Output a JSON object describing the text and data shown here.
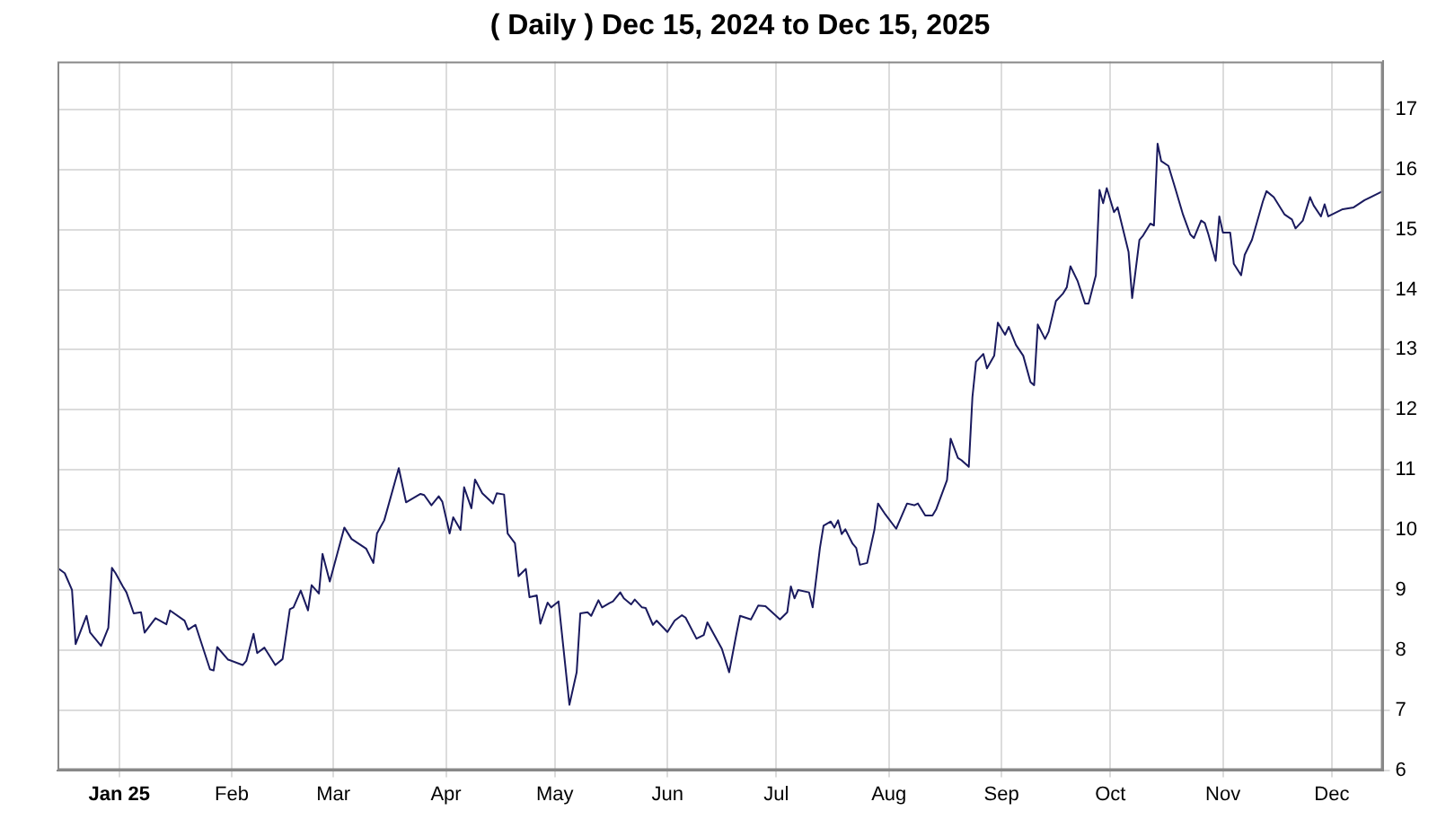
{
  "chart_data": {
    "type": "line",
    "title": "( Daily ) Dec 15, 2024 to Dec 15, 2025",
    "xlim": [
      "2024-12-15",
      "2025-12-15"
    ],
    "xticks": [
      {
        "value": "2025-01-01",
        "label": "Jan 25"
      },
      {
        "value": "2025-02-01",
        "label": "Feb"
      },
      {
        "value": "2025-03-01",
        "label": "Mar"
      },
      {
        "value": "2025-04-01",
        "label": "Apr"
      },
      {
        "value": "2025-05-01",
        "label": "May"
      },
      {
        "value": "2025-06-01",
        "label": "Jun"
      },
      {
        "value": "2025-07-01",
        "label": "Jul"
      },
      {
        "value": "2025-08-01",
        "label": "Aug"
      },
      {
        "value": "2025-09-01",
        "label": "Sep"
      },
      {
        "value": "2025-10-01",
        "label": "Oct"
      },
      {
        "value": "2025-11-01",
        "label": "Nov"
      },
      {
        "value": "2025-12-01",
        "label": "Dec"
      }
    ],
    "ylim": [
      6,
      17.8
    ],
    "yticks": [
      6,
      7,
      8,
      9,
      10,
      11,
      12,
      13,
      14,
      15,
      16,
      17
    ],
    "grid": true,
    "legend": false,
    "marker": "none",
    "line_style": "solid",
    "x": [
      "2024-12-15",
      "2024-12-17",
      "2024-12-19",
      "2024-12-20",
      "2024-12-23",
      "2024-12-24",
      "2024-12-27",
      "2024-12-29",
      "2024-12-30",
      "2024-12-31",
      "2025-01-02",
      "2025-01-03",
      "2025-01-05",
      "2025-01-07",
      "2025-01-08",
      "2025-01-11",
      "2025-01-14",
      "2025-01-15",
      "2025-01-19",
      "2025-01-20",
      "2025-01-22",
      "2025-01-26",
      "2025-01-27",
      "2025-01-28",
      "2025-01-31",
      "2025-02-04",
      "2025-02-05",
      "2025-02-07",
      "2025-02-08",
      "2025-02-10",
      "2025-02-13",
      "2025-02-15",
      "2025-02-17",
      "2025-02-18",
      "2025-02-20",
      "2025-02-22",
      "2025-02-23",
      "2025-02-25",
      "2025-02-26",
      "2025-02-28",
      "2025-03-04",
      "2025-03-06",
      "2025-03-10",
      "2025-03-12",
      "2025-03-13",
      "2025-03-15",
      "2025-03-19",
      "2025-03-21",
      "2025-03-25",
      "2025-03-26",
      "2025-03-28",
      "2025-03-30",
      "2025-03-31",
      "2025-04-02",
      "2025-04-03",
      "2025-04-05",
      "2025-04-06",
      "2025-04-08",
      "2025-04-09",
      "2025-04-11",
      "2025-04-14",
      "2025-04-15",
      "2025-04-17",
      "2025-04-18",
      "2025-04-20",
      "2025-04-21",
      "2025-04-23",
      "2025-04-24",
      "2025-04-26",
      "2025-04-27",
      "2025-04-29",
      "2025-04-30",
      "2025-05-02",
      "2025-05-05",
      "2025-05-07",
      "2025-05-08",
      "2025-05-10",
      "2025-05-11",
      "2025-05-13",
      "2025-05-14",
      "2025-05-16",
      "2025-05-17",
      "2025-05-19",
      "2025-05-20",
      "2025-05-22",
      "2025-05-23",
      "2025-05-25",
      "2025-05-26",
      "2025-05-28",
      "2025-05-29",
      "2025-06-01",
      "2025-06-03",
      "2025-06-05",
      "2025-06-06",
      "2025-06-09",
      "2025-06-11",
      "2025-06-12",
      "2025-06-14",
      "2025-06-16",
      "2025-06-18",
      "2025-06-20",
      "2025-06-21",
      "2025-06-24",
      "2025-06-26",
      "2025-06-28",
      "2025-07-02",
      "2025-07-04",
      "2025-07-05",
      "2025-07-06",
      "2025-07-07",
      "2025-07-10",
      "2025-07-11",
      "2025-07-13",
      "2025-07-14",
      "2025-07-16",
      "2025-07-17",
      "2025-07-18",
      "2025-07-19",
      "2025-07-20",
      "2025-07-22",
      "2025-07-23",
      "2025-07-24",
      "2025-07-26",
      "2025-07-28",
      "2025-07-29",
      "2025-07-31",
      "2025-08-03",
      "2025-08-04",
      "2025-08-06",
      "2025-08-08",
      "2025-08-09",
      "2025-08-11",
      "2025-08-13",
      "2025-08-14",
      "2025-08-17",
      "2025-08-18",
      "2025-08-20",
      "2025-08-21",
      "2025-08-23",
      "2025-08-24",
      "2025-08-25",
      "2025-08-27",
      "2025-08-28",
      "2025-08-30",
      "2025-08-31",
      "2025-09-02",
      "2025-09-03",
      "2025-09-05",
      "2025-09-07",
      "2025-09-09",
      "2025-09-10",
      "2025-09-11",
      "2025-09-13",
      "2025-09-14",
      "2025-09-16",
      "2025-09-18",
      "2025-09-19",
      "2025-09-20",
      "2025-09-22",
      "2025-09-24",
      "2025-09-25",
      "2025-09-27",
      "2025-09-28",
      "2025-09-29",
      "2025-09-30",
      "2025-10-02",
      "2025-10-03",
      "2025-10-06",
      "2025-10-07",
      "2025-10-09",
      "2025-10-10",
      "2025-10-12",
      "2025-10-13",
      "2025-10-14",
      "2025-10-15",
      "2025-10-17",
      "2025-10-19",
      "2025-10-21",
      "2025-10-23",
      "2025-10-24",
      "2025-10-26",
      "2025-10-27",
      "2025-10-28",
      "2025-10-30",
      "2025-10-31",
      "2025-11-01",
      "2025-11-03",
      "2025-11-04",
      "2025-11-06",
      "2025-11-07",
      "2025-11-09",
      "2025-11-12",
      "2025-11-13",
      "2025-11-15",
      "2025-11-18",
      "2025-11-20",
      "2025-11-21",
      "2025-11-23",
      "2025-11-25",
      "2025-11-26",
      "2025-11-28",
      "2025-11-29",
      "2025-11-30",
      "2025-12-04",
      "2025-12-07",
      "2025-12-10",
      "2025-12-15"
    ],
    "series": [
      {
        "color": "#1a1a5e",
        "values": [
          9.37,
          9.28,
          9.0,
          8.1,
          8.57,
          8.29,
          8.07,
          8.37,
          9.37,
          9.28,
          9.06,
          8.96,
          8.61,
          8.63,
          8.29,
          8.53,
          8.43,
          8.66,
          8.49,
          8.34,
          8.42,
          7.68,
          7.66,
          8.05,
          7.84,
          7.75,
          7.82,
          8.27,
          7.95,
          8.04,
          7.75,
          7.85,
          8.68,
          8.71,
          8.99,
          8.66,
          9.08,
          8.94,
          9.6,
          9.14,
          10.04,
          9.85,
          9.69,
          9.45,
          9.94,
          10.16,
          11.03,
          10.46,
          10.6,
          10.58,
          10.41,
          10.56,
          10.47,
          9.94,
          10.21,
          10.0,
          10.71,
          10.36,
          10.84,
          10.61,
          10.44,
          10.61,
          10.59,
          9.94,
          9.78,
          9.23,
          9.35,
          8.88,
          8.91,
          8.44,
          8.79,
          8.71,
          8.81,
          7.09,
          7.63,
          8.61,
          8.63,
          8.57,
          8.83,
          8.71,
          8.78,
          8.81,
          8.96,
          8.86,
          8.76,
          8.84,
          8.71,
          8.7,
          8.42,
          8.49,
          8.3,
          8.49,
          8.58,
          8.54,
          8.19,
          8.25,
          8.46,
          8.24,
          8.02,
          7.63,
          8.27,
          8.57,
          8.51,
          8.74,
          8.73,
          8.51,
          8.63,
          9.06,
          8.86,
          9.0,
          8.96,
          8.71,
          9.7,
          10.07,
          10.14,
          10.04,
          10.16,
          9.93,
          10.01,
          9.77,
          9.7,
          9.42,
          9.45,
          10.0,
          10.44,
          10.26,
          10.02,
          10.16,
          10.44,
          10.41,
          10.44,
          10.24,
          10.24,
          10.34,
          10.83,
          11.52,
          11.2,
          11.16,
          11.05,
          12.21,
          12.8,
          12.93,
          12.69,
          12.9,
          13.45,
          13.25,
          13.38,
          13.08,
          12.9,
          12.46,
          12.41,
          13.42,
          13.18,
          13.3,
          13.81,
          13.94,
          14.04,
          14.39,
          14.14,
          13.77,
          13.77,
          14.24,
          15.66,
          15.44,
          15.69,
          15.29,
          15.37,
          14.63,
          13.86,
          14.83,
          14.9,
          15.1,
          15.07,
          16.43,
          16.14,
          16.06,
          15.66,
          15.25,
          14.92,
          14.86,
          15.15,
          15.11,
          14.92,
          14.48,
          15.22,
          14.95,
          14.95,
          14.43,
          14.24,
          14.58,
          14.83,
          15.47,
          15.64,
          15.54,
          15.25,
          15.17,
          15.02,
          15.15,
          15.54,
          15.4,
          15.22,
          15.42,
          15.22,
          15.34,
          15.37,
          15.49,
          15.64
        ]
      }
    ]
  }
}
